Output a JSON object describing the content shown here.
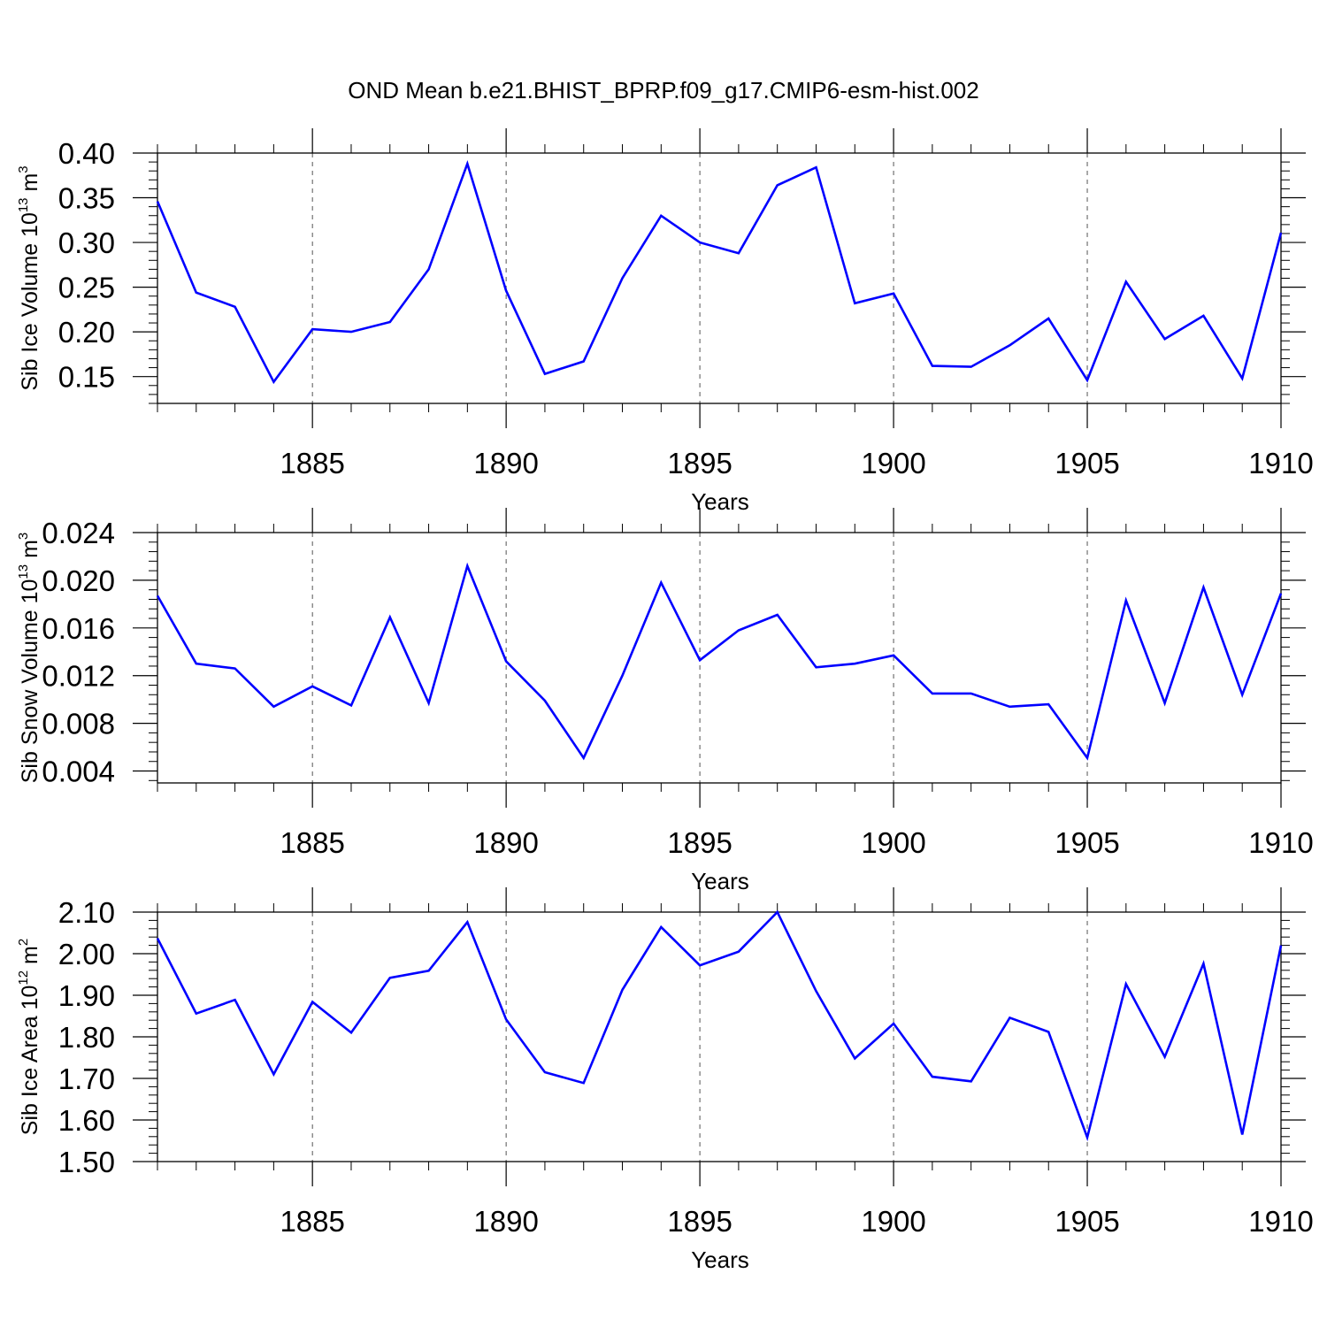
{
  "title": "OND Mean b.e21.BHIST_BPRP.f09_g17.CMIP6-esm-hist.002",
  "colors": {
    "line": "#0000ff",
    "axis": "#000000",
    "grid": "#555555"
  },
  "chart_data": [
    {
      "type": "line",
      "ylabel": {
        "pre": "Sib Ice Volume 10",
        "exp": "13",
        "mid": " m",
        "unit_exp": "3"
      },
      "xlabel": "Years",
      "xlim": [
        1881,
        1910
      ],
      "ylim": [
        0.12,
        0.4
      ],
      "yticks": [
        0.15,
        0.2,
        0.25,
        0.3,
        0.35,
        0.4
      ],
      "ytick_labels": [
        "0.15",
        "0.20",
        "0.25",
        "0.30",
        "0.35",
        "0.40"
      ],
      "xticks": [
        1885,
        1890,
        1895,
        1900,
        1905,
        1910
      ],
      "xtick_labels": [
        "1885",
        "1890",
        "1895",
        "1900",
        "1905",
        "1910"
      ],
      "grid": "vertical dashed at major x ticks",
      "x": [
        1881,
        1882,
        1883,
        1884,
        1885,
        1886,
        1887,
        1888,
        1889,
        1890,
        1891,
        1892,
        1893,
        1894,
        1895,
        1896,
        1897,
        1898,
        1899,
        1900,
        1901,
        1902,
        1903,
        1904,
        1905,
        1906,
        1907,
        1908,
        1909,
        1910
      ],
      "values": [
        0.346,
        0.244,
        0.228,
        0.144,
        0.203,
        0.2,
        0.211,
        0.27,
        0.388,
        0.246,
        0.153,
        0.167,
        0.26,
        0.33,
        0.3,
        0.288,
        0.364,
        0.384,
        0.232,
        0.243,
        0.162,
        0.161,
        0.185,
        0.215,
        0.146,
        0.256,
        0.192,
        0.218,
        0.148,
        0.311
      ]
    },
    {
      "type": "line",
      "ylabel": {
        "pre": "Sib Snow Volume 10",
        "exp": "13",
        "mid": " m",
        "unit_exp": "3"
      },
      "xlabel": "Years",
      "xlim": [
        1881,
        1910
      ],
      "ylim": [
        0.003,
        0.024
      ],
      "yticks": [
        0.004,
        0.008,
        0.012,
        0.016,
        0.02,
        0.024
      ],
      "ytick_labels": [
        "0.004",
        "0.008",
        "0.012",
        "0.016",
        "0.020",
        "0.024"
      ],
      "xticks": [
        1885,
        1890,
        1895,
        1900,
        1905,
        1910
      ],
      "xtick_labels": [
        "1885",
        "1890",
        "1895",
        "1900",
        "1905",
        "1910"
      ],
      "grid": "vertical dashed at major x ticks",
      "x": [
        1881,
        1882,
        1883,
        1884,
        1885,
        1886,
        1887,
        1888,
        1889,
        1890,
        1891,
        1892,
        1893,
        1894,
        1895,
        1896,
        1897,
        1898,
        1899,
        1900,
        1901,
        1902,
        1903,
        1904,
        1905,
        1906,
        1907,
        1908,
        1909,
        1910
      ],
      "values": [
        0.0187,
        0.013,
        0.0126,
        0.0094,
        0.0111,
        0.0095,
        0.0169,
        0.0097,
        0.0212,
        0.0132,
        0.0099,
        0.0051,
        0.012,
        0.0198,
        0.0133,
        0.0158,
        0.0171,
        0.0127,
        0.013,
        0.0137,
        0.0105,
        0.0105,
        0.0094,
        0.0096,
        0.0051,
        0.0183,
        0.0097,
        0.0194,
        0.0104,
        0.0189
      ]
    },
    {
      "type": "line",
      "ylabel": {
        "pre": "Sib Ice Area 10",
        "exp": "12",
        "mid": " m",
        "unit_exp": "2"
      },
      "xlabel": "Years",
      "xlim": [
        1881,
        1910
      ],
      "ylim": [
        1.5,
        2.1
      ],
      "yticks": [
        1.5,
        1.6,
        1.7,
        1.8,
        1.9,
        2.0,
        2.1
      ],
      "ytick_labels": [
        "1.50",
        "1.60",
        "1.70",
        "1.80",
        "1.90",
        "2.00",
        "2.10"
      ],
      "xticks": [
        1885,
        1890,
        1895,
        1900,
        1905,
        1910
      ],
      "xtick_labels": [
        "1885",
        "1890",
        "1895",
        "1900",
        "1905",
        "1910"
      ],
      "grid": "vertical dashed at major x ticks",
      "x": [
        1881,
        1882,
        1883,
        1884,
        1885,
        1886,
        1887,
        1888,
        1889,
        1890,
        1891,
        1892,
        1893,
        1894,
        1895,
        1896,
        1897,
        1898,
        1899,
        1900,
        1901,
        1902,
        1903,
        1904,
        1905,
        1906,
        1907,
        1908,
        1909,
        1910
      ],
      "values": [
        2.037,
        1.856,
        1.889,
        1.71,
        1.884,
        1.81,
        1.942,
        1.959,
        2.076,
        1.842,
        1.715,
        1.689,
        1.913,
        2.064,
        1.972,
        2.005,
        2.1,
        1.91,
        1.748,
        1.832,
        1.704,
        1.693,
        1.846,
        1.812,
        1.558,
        1.927,
        1.752,
        1.976,
        1.565,
        2.02
      ]
    }
  ]
}
